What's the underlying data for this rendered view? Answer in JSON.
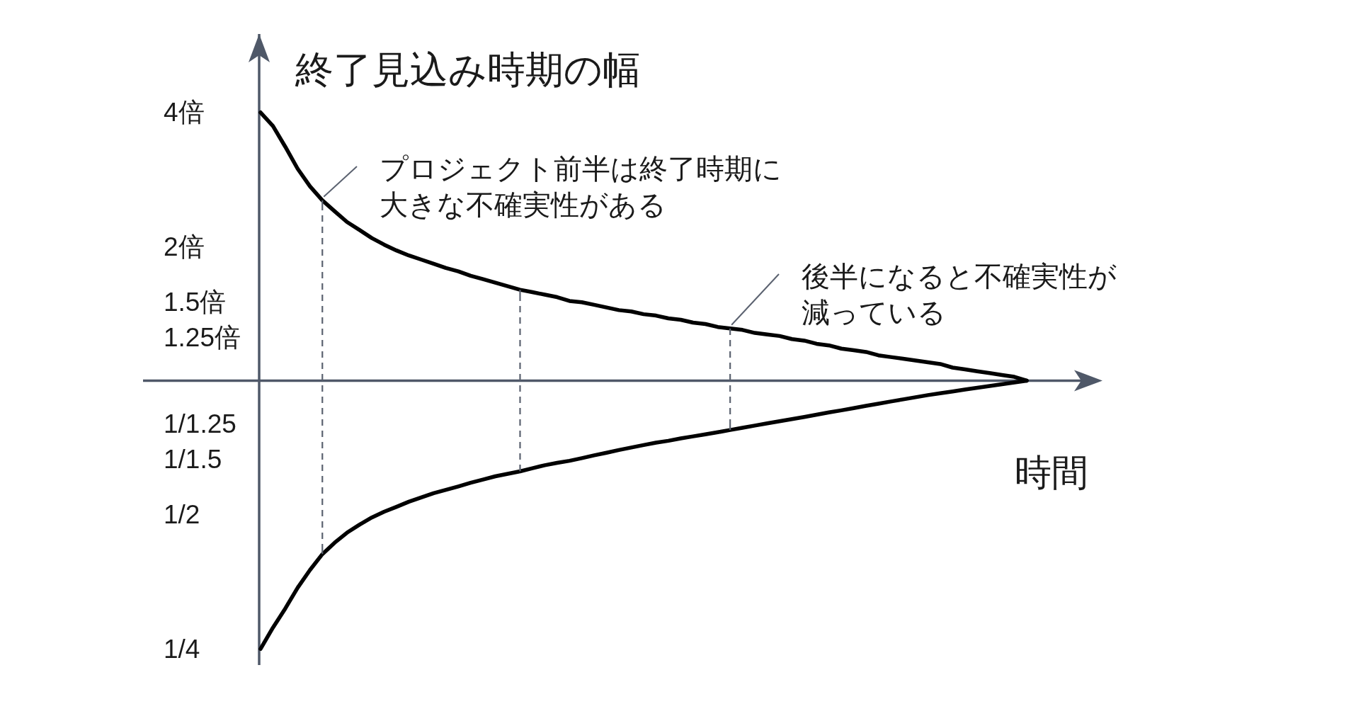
{
  "chart_data": {
    "type": "line",
    "ylabel": "終了見込み時期の幅",
    "xlabel": "時間",
    "annotations": [
      "プロジェクト前半は終了時期に大きな不確実性がある",
      "後半になると不確実性が減っている"
    ],
    "categories": [
      null,
      null,
      null,
      null,
      null,
      null,
      null,
      null,
      null,
      null,
      null,
      null,
      null,
      null,
      null,
      null,
      null,
      null,
      null,
      null,
      null,
      null,
      null,
      null,
      null,
      null,
      null,
      null,
      null,
      null,
      null,
      null,
      null,
      null,
      null,
      null,
      null,
      null,
      null,
      null,
      null,
      null,
      null,
      null,
      null,
      null,
      null,
      null,
      null,
      null,
      null,
      null,
      null,
      null,
      null,
      null,
      null,
      null,
      null,
      null,
      null,
      null,
      null
    ],
    "log": true,
    "ylim": [
      0.23,
      6
    ],
    "yticks": [
      {
        "value": 4,
        "label": "4倍"
      },
      {
        "value": 2,
        "label": "2倍"
      },
      {
        "value": 1.5,
        "label": "1.5倍"
      },
      {
        "value": 1.25,
        "label": "1.25倍"
      },
      {
        "value": 0.8,
        "label": "1/1.25"
      },
      {
        "value": 0.6667,
        "label": "1/1.5"
      },
      {
        "value": 0.5,
        "label": "1/2"
      },
      {
        "value": 0.25,
        "label": "1/4"
      }
    ],
    "ref_lines": [
      {
        "axis": "y",
        "value": 1,
        "color": "#4f5868"
      }
    ],
    "series": [
      {
        "color": "#000000",
        "values": [
          4,
          3.73,
          3.35,
          2.99,
          2.73,
          2.54,
          2.4,
          2.27,
          2.18,
          2.09,
          2.02,
          1.96,
          1.91,
          1.87,
          1.83,
          1.79,
          1.76,
          1.72,
          1.69,
          1.66,
          1.63,
          1.6,
          1.58,
          1.56,
          1.54,
          1.51,
          1.5,
          1.48,
          1.46,
          1.44,
          1.43,
          1.41,
          1.4,
          1.38,
          1.37,
          1.35,
          1.34,
          1.32,
          1.31,
          1.3,
          1.28,
          1.27,
          1.26,
          1.24,
          1.23,
          1.21,
          1.2,
          1.18,
          1.17,
          1.16,
          1.14,
          1.13,
          1.12,
          1.11,
          1.1,
          1.09,
          1.07,
          1.06,
          1.05,
          1.04,
          1.03,
          1.02,
          1
        ]
      },
      {
        "color": "#000000",
        "values": [
          0.25,
          0.279,
          0.308,
          0.343,
          0.376,
          0.408,
          0.433,
          0.456,
          0.475,
          0.493,
          0.508,
          0.521,
          0.535,
          0.547,
          0.559,
          0.569,
          0.579,
          0.59,
          0.6,
          0.61,
          0.618,
          0.626,
          0.636,
          0.646,
          0.654,
          0.661,
          0.67,
          0.68,
          0.689,
          0.699,
          0.708,
          0.717,
          0.726,
          0.733,
          0.742,
          0.75,
          0.758,
          0.766,
          0.775,
          0.784,
          0.793,
          0.802,
          0.811,
          0.82,
          0.829,
          0.839,
          0.849,
          0.858,
          0.868,
          0.878,
          0.888,
          0.898,
          0.908,
          0.918,
          0.928,
          0.937,
          0.946,
          0.955,
          0.964,
          0.973,
          0.982,
          0.991,
          1
        ]
      },
      {
        "type": "bar",
        "color": "#5b6270",
        "line_style": "dashed",
        "base": [
          null,
          null,
          null,
          null,
          null,
          0.408,
          null,
          null,
          null,
          null,
          null,
          null,
          null,
          null,
          null,
          null,
          null,
          null,
          null,
          null,
          null,
          0.626,
          null,
          null,
          null,
          null,
          null,
          null,
          null,
          null,
          null,
          null,
          null,
          null,
          null,
          null,
          null,
          null,
          0.775,
          null,
          null,
          null,
          null,
          null,
          null,
          null,
          null,
          null,
          null,
          null,
          null,
          null,
          null,
          null,
          null,
          null,
          null,
          null,
          null,
          null,
          null,
          null,
          null
        ],
        "values": [
          null,
          null,
          null,
          null,
          null,
          2.132,
          null,
          null,
          null,
          null,
          null,
          null,
          null,
          null,
          null,
          null,
          null,
          null,
          null,
          null,
          null,
          0.974,
          null,
          null,
          null,
          null,
          null,
          null,
          null,
          null,
          null,
          null,
          null,
          null,
          null,
          null,
          null,
          null,
          0.535,
          null,
          null,
          null,
          null,
          null,
          null,
          null,
          null,
          null,
          null,
          null,
          null,
          null,
          null,
          null,
          null,
          null,
          null,
          null,
          null,
          null,
          null,
          null,
          null
        ]
      }
    ]
  }
}
